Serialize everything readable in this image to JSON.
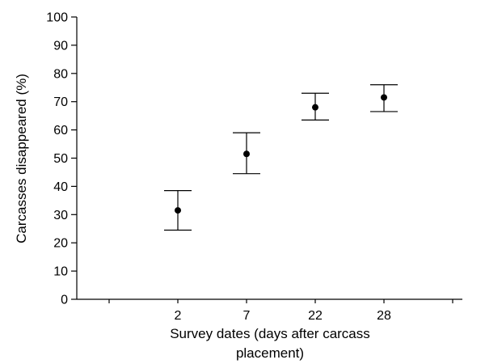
{
  "chart_data": {
    "type": "scatter",
    "categories": [
      "2",
      "7",
      "22",
      "28"
    ],
    "values": [
      31.5,
      51.5,
      68.0,
      71.5
    ],
    "error_low": [
      24.5,
      44.5,
      63.5,
      66.5
    ],
    "error_high": [
      38.5,
      59.0,
      73.0,
      76.0
    ],
    "xlabel_lines": [
      "Survey dates (days after carcass",
      "placement)"
    ],
    "ylabel": "Carcasses disappeared (%)",
    "ylim": [
      0,
      100
    ],
    "yticks": [
      0,
      10,
      20,
      30,
      40,
      50,
      60,
      70,
      80,
      90,
      100
    ],
    "grid": false,
    "legend": "none"
  }
}
